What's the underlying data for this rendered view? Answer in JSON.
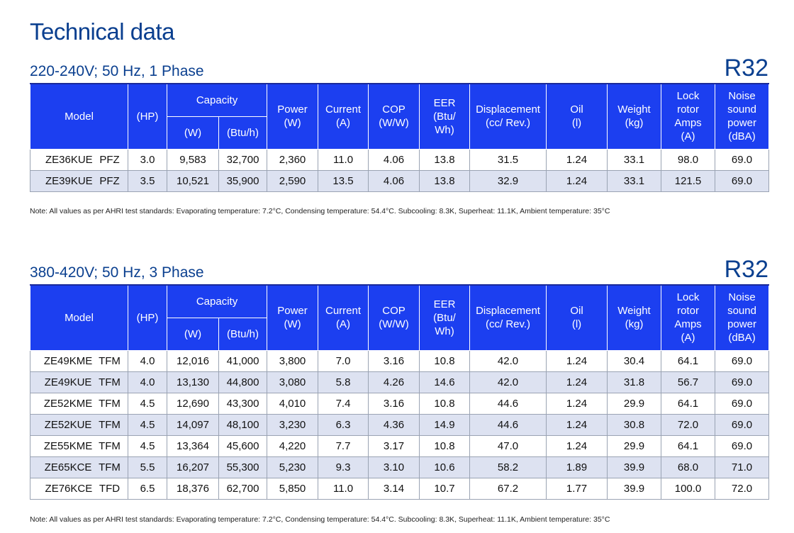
{
  "page": {
    "title": "Technical data"
  },
  "headers": {
    "model": "Model",
    "hp": "(HP)",
    "capacity": "Capacity",
    "capacity_w": "(W)",
    "capacity_btu": "(Btu/h)",
    "power": [
      "Power",
      "(W)"
    ],
    "current": [
      "Current",
      "(A)"
    ],
    "cop": [
      "COP",
      "(W/W)"
    ],
    "eer": [
      "EER",
      "(Btu/",
      "Wh)"
    ],
    "displacement": [
      "Displacement",
      "(cc/ Rev.)"
    ],
    "oil": [
      "Oil",
      "(l)"
    ],
    "weight": [
      "Weight",
      "(kg)"
    ],
    "lock_rotor": [
      "Lock",
      "rotor",
      "Amps",
      "(A)"
    ],
    "noise": [
      "Noise",
      "sound",
      "power",
      "(dBA)"
    ]
  },
  "sections": [
    {
      "title": "220-240V; 50 Hz, 1 Phase",
      "refrigerant": "R32",
      "rows": [
        [
          "ZE36KUE",
          "PFZ",
          "3.0",
          "9,583",
          "32,700",
          "2,360",
          "11.0",
          "4.06",
          "13.8",
          "31.5",
          "1.24",
          "33.1",
          "98.0",
          "69.0"
        ],
        [
          "ZE39KUE",
          "PFZ",
          "3.5",
          "10,521",
          "35,900",
          "2,590",
          "13.5",
          "4.06",
          "13.8",
          "32.9",
          "1.24",
          "33.1",
          "121.5",
          "69.0"
        ]
      ],
      "note": "Note:  All values as per AHRI test standards: Evaporating temperature: 7.2°C, Condensing temperature: 54.4°C. Subcooling: 8.3K, Superheat: 11.1K, Ambient temperature: 35°C"
    },
    {
      "title": "380-420V; 50 Hz, 3 Phase",
      "refrigerant": "R32",
      "rows": [
        [
          "ZE49KME",
          "TFM",
          "4.0",
          "12,016",
          "41,000",
          "3,800",
          "7.0",
          "3.16",
          "10.8",
          "42.0",
          "1.24",
          "30.4",
          "64.1",
          "69.0"
        ],
        [
          "ZE49KUE",
          "TFM",
          "4.0",
          "13,130",
          "44,800",
          "3,080",
          "5.8",
          "4.26",
          "14.6",
          "42.0",
          "1.24",
          "31.8",
          "56.7",
          "69.0"
        ],
        [
          "ZE52KME",
          "TFM",
          "4.5",
          "12,690",
          "43,300",
          "4,010",
          "7.4",
          "3.16",
          "10.8",
          "44.6",
          "1.24",
          "29.9",
          "64.1",
          "69.0"
        ],
        [
          "ZE52KUE",
          "TFM",
          "4.5",
          "14,097",
          "48,100",
          "3,230",
          "6.3",
          "4.36",
          "14.9",
          "44.6",
          "1.24",
          "30.8",
          "72.0",
          "69.0"
        ],
        [
          "ZE55KME",
          "TFM",
          "4.5",
          "13,364",
          "45,600",
          "4,220",
          "7.7",
          "3.17",
          "10.8",
          "47.0",
          "1.24",
          "29.9",
          "64.1",
          "69.0"
        ],
        [
          "ZE65KCE",
          "TFM",
          "5.5",
          "16,207",
          "55,300",
          "5,230",
          "9.3",
          "3.10",
          "10.6",
          "58.2",
          "1.89",
          "39.9",
          "68.0",
          "71.0"
        ],
        [
          "ZE76KCE",
          "TFD",
          "6.5",
          "18,376",
          "62,700",
          "5,850",
          "11.0",
          "3.14",
          "10.7",
          "67.2",
          "1.77",
          "39.9",
          "100.0",
          "72.0"
        ]
      ],
      "note": "Note:  All values as per AHRI test standards: Evaporating temperature: 7.2°C, Condensing temperature: 54.4°C. Subcooling: 8.3K, Superheat: 11.1K, Ambient temperature: 35°C"
    }
  ]
}
